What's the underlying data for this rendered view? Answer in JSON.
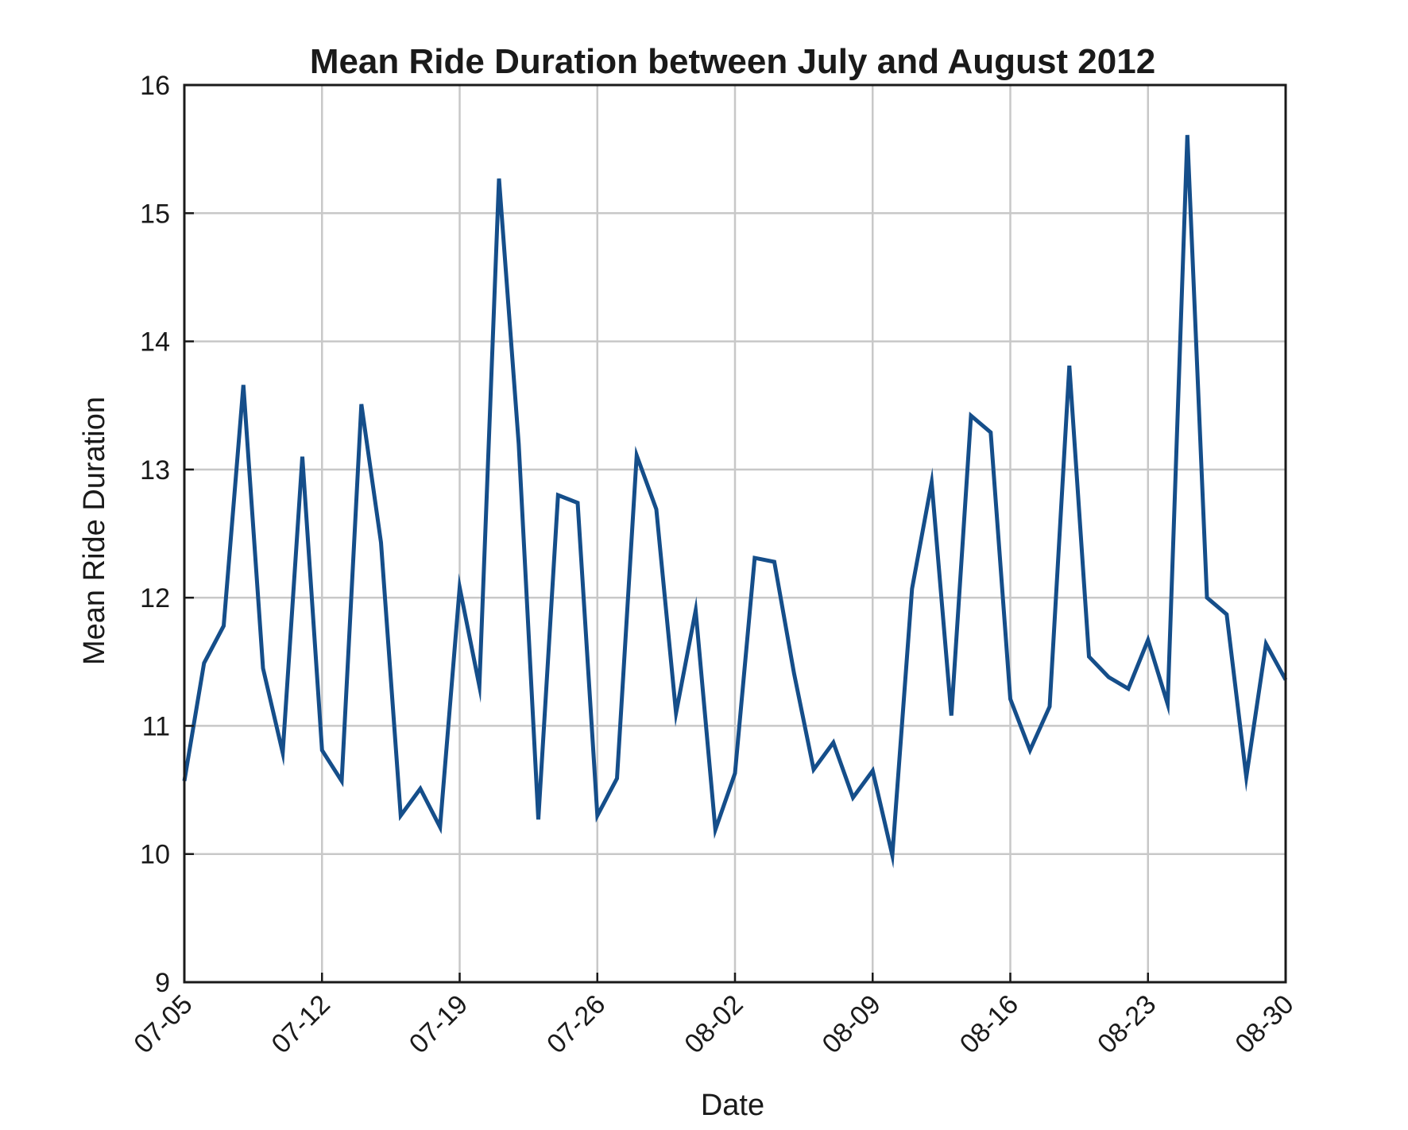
{
  "chart_data": {
    "type": "line",
    "title": "Mean Ride Duration between July and August 2012",
    "xlabel": "Date",
    "ylabel": "Mean Ride Duration",
    "ylim": [
      9,
      16
    ],
    "xlim": [
      "2012-07-05",
      "2012-08-30"
    ],
    "yticks": [
      "9",
      "10",
      "11",
      "12",
      "13",
      "14",
      "15",
      "16"
    ],
    "xticks": [
      "07-05",
      "07-12",
      "07-19",
      "07-26",
      "08-02",
      "08-09",
      "08-16",
      "08-23",
      "08-30"
    ],
    "grid": true,
    "line_color": "#154e8a",
    "series": [
      {
        "x": [
          "2012-07-05",
          "2012-07-06",
          "2012-07-07",
          "2012-07-08",
          "2012-07-09",
          "2012-07-10",
          "2012-07-11",
          "2012-07-12",
          "2012-07-13",
          "2012-07-14",
          "2012-07-15",
          "2012-07-16",
          "2012-07-17",
          "2012-07-18",
          "2012-07-19",
          "2012-07-20",
          "2012-07-21",
          "2012-07-22",
          "2012-07-23",
          "2012-07-24",
          "2012-07-25",
          "2012-07-26",
          "2012-07-27",
          "2012-07-28",
          "2012-07-29",
          "2012-07-30",
          "2012-07-31",
          "2012-08-01",
          "2012-08-02",
          "2012-08-03",
          "2012-08-04",
          "2012-08-05",
          "2012-08-06",
          "2012-08-07",
          "2012-08-08",
          "2012-08-09",
          "2012-08-10",
          "2012-08-11",
          "2012-08-12",
          "2012-08-13",
          "2012-08-14",
          "2012-08-15",
          "2012-08-16",
          "2012-08-17",
          "2012-08-18",
          "2012-08-19",
          "2012-08-20",
          "2012-08-21",
          "2012-08-22",
          "2012-08-23",
          "2012-08-24",
          "2012-08-25",
          "2012-08-26",
          "2012-08-27",
          "2012-08-28",
          "2012-08-29",
          "2012-08-30"
        ],
        "values": [
          10.57,
          11.49,
          11.78,
          13.66,
          11.45,
          10.79,
          13.1,
          10.81,
          10.57,
          13.51,
          12.43,
          10.3,
          10.51,
          10.21,
          12.08,
          11.31,
          15.27,
          13.2,
          10.27,
          12.8,
          12.74,
          10.3,
          10.59,
          13.11,
          12.69,
          11.1,
          11.9,
          10.19,
          10.63,
          12.31,
          12.28,
          11.41,
          10.66,
          10.87,
          10.44,
          10.65,
          9.99,
          12.07,
          12.9,
          11.08,
          13.42,
          13.29,
          11.21,
          10.81,
          11.15,
          13.81,
          11.54,
          11.38,
          11.29,
          11.67,
          11.17,
          15.61,
          12.0,
          11.87,
          10.6,
          11.64,
          11.36
        ]
      }
    ]
  }
}
